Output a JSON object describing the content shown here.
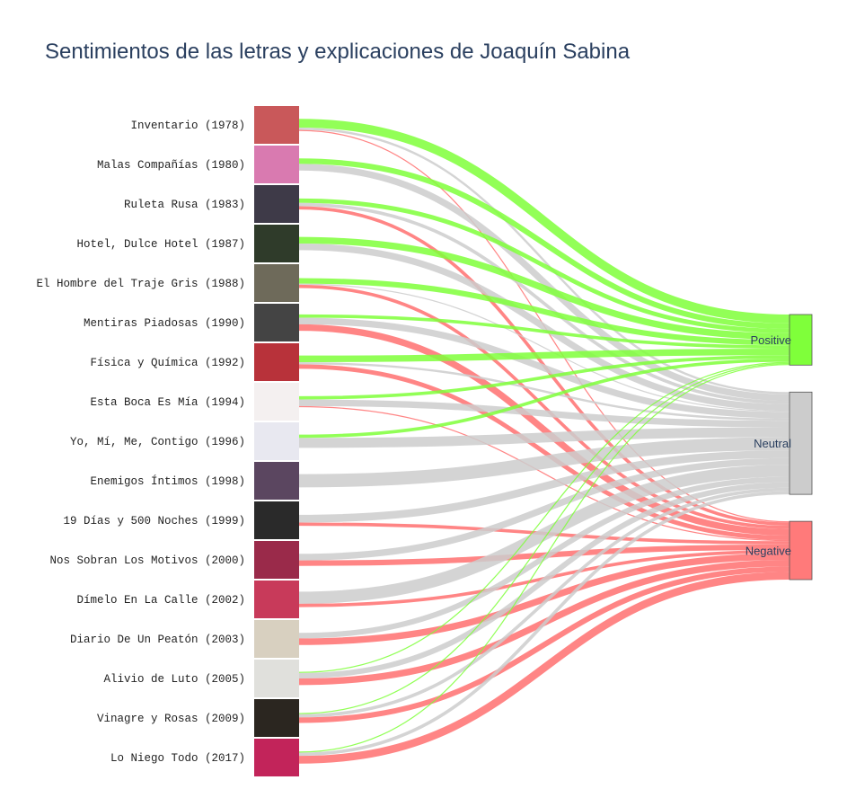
{
  "chart_data": {
    "type": "sankey",
    "title": "Sentimientos de las letras y explicaciones de Joaquín Sabina",
    "sources": [
      "Inventario (1978)",
      "Malas Compañías (1980)",
      "Ruleta Rusa (1983)",
      "Hotel, Dulce Hotel (1987)",
      "El Hombre del Traje Gris (1988)",
      "Mentiras Piadosas (1990)",
      "Física y Química (1992)",
      "Esta Boca Es Mía (1994)",
      "Yo, Mí, Me, Contigo (1996)",
      "Enemigos Íntimos (1998)",
      "19 Días y 500 Noches (1999)",
      "Nos Sobran Los Motivos (2000)",
      "Dímelo En La Calle (2002)",
      "Diario De Un Peatón (2003)",
      "Alivio de Luto (2005)",
      "Vinagre y Rosas (2009)",
      "Lo Niego Todo (2017)"
    ],
    "targets": [
      "Positive",
      "Neutral",
      "Negative"
    ],
    "colors": {
      "Positive": "#7fff3a",
      "Neutral": "#cccccc",
      "Negative": "#ff7070"
    },
    "node_colors": {
      "Positive": "#7fff3a",
      "Neutral": "#cccccc",
      "Negative": "#ff7a7a"
    },
    "links": [
      [
        8,
        2,
        1
      ],
      [
        5,
        6,
        0
      ],
      [
        4,
        3,
        3
      ],
      [
        6,
        6,
        0
      ],
      [
        5,
        1,
        3
      ],
      [
        3,
        6,
        6
      ],
      [
        6,
        2,
        4
      ],
      [
        3,
        6,
        1
      ],
      [
        3,
        9,
        0
      ],
      [
        0,
        12,
        0
      ],
      [
        0,
        7,
        3
      ],
      [
        0,
        6,
        5
      ],
      [
        0,
        11,
        3
      ],
      [
        0,
        5,
        6
      ],
      [
        1,
        5,
        6
      ],
      [
        1,
        3,
        5
      ],
      [
        1,
        3,
        7
      ]
    ]
  }
}
